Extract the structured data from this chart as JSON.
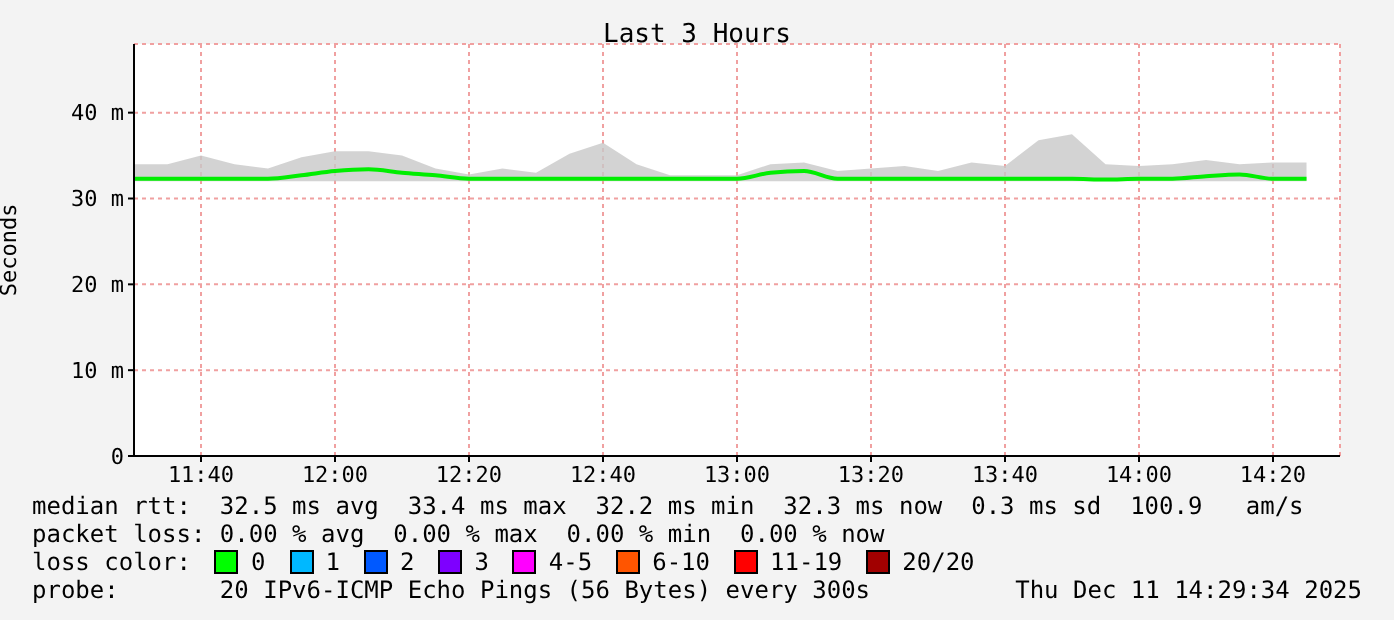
{
  "chart_data": {
    "type": "line",
    "title": "Last 3 Hours",
    "ylabel": "Seconds",
    "x": [
      11.5,
      11.5833,
      11.6667,
      11.75,
      11.8333,
      11.9167,
      12,
      12.0833,
      12.1667,
      12.25,
      12.3333,
      12.4167,
      12.5,
      12.5833,
      12.6667,
      12.75,
      12.8333,
      12.9167,
      13,
      13.0833,
      13.1667,
      13.25,
      13.3333,
      13.4167,
      13.5,
      13.5833,
      13.6667,
      13.75,
      13.8333,
      13.9167,
      14,
      14.0833,
      14.1667,
      14.25,
      14.3333,
      14.4167
    ],
    "series": [
      {
        "color": "#00ee00",
        "values": [
          32.3,
          32.3,
          32.3,
          32.3,
          32.3,
          32.7,
          33.2,
          33.4,
          33,
          32.7,
          32.3,
          32.3,
          32.3,
          32.3,
          32.3,
          32.3,
          32.3,
          32.3,
          32.3,
          33,
          33.2,
          32.3,
          32.3,
          32.3,
          32.3,
          32.3,
          32.3,
          32.3,
          32.3,
          32.2,
          32.3,
          32.3,
          32.6,
          32.8,
          32.3,
          32.3
        ],
        "lower": [
          32,
          32,
          32,
          32,
          32,
          32,
          32,
          32,
          32,
          32,
          32,
          32,
          32,
          32,
          32,
          32,
          32,
          32,
          32,
          32,
          32,
          32,
          32,
          32,
          32,
          32,
          32,
          32,
          32,
          32,
          32,
          32,
          32,
          32,
          32,
          32
        ],
        "upper": [
          34,
          34,
          35,
          34,
          33.5,
          34.8,
          35.5,
          35.5,
          35,
          33.5,
          32.8,
          33.5,
          33,
          35.2,
          36.5,
          34,
          32.7,
          32.7,
          32.7,
          34,
          34.2,
          33.2,
          33.5,
          33.8,
          33.2,
          34.2,
          33.8,
          36.8,
          37.5,
          34,
          33.8,
          34,
          34.5,
          34,
          34.2,
          34.2
        ]
      }
    ],
    "xlim": [
      11.5,
      14.5
    ],
    "xticks": [
      {
        "value": 11.6667,
        "label": "11:40"
      },
      {
        "value": 12,
        "label": "12:00"
      },
      {
        "value": 12.3333,
        "label": "12:20"
      },
      {
        "value": 12.6667,
        "label": "12:40"
      },
      {
        "value": 13,
        "label": "13:00"
      },
      {
        "value": 13.3333,
        "label": "13:20"
      },
      {
        "value": 13.6667,
        "label": "13:40"
      },
      {
        "value": 14,
        "label": "14:00"
      },
      {
        "value": 14.3333,
        "label": "14:20"
      }
    ],
    "ylim": [
      0,
      48
    ],
    "yticks": [
      0,
      {
        "value": 10,
        "label": "10 m"
      },
      {
        "value": 20,
        "label": "20 m"
      },
      {
        "value": 30,
        "label": "30 m"
      },
      {
        "value": 40,
        "label": "40 m"
      }
    ],
    "grid": true,
    "legend": false,
    "marker": "none",
    "annotations": [
      "median rtt:  32.5 ms avg  33.4 ms max  32.2 ms min  32.3 ms now  0.3 ms sd  100.9   am/s",
      "packet loss: 0.00 % avg  0.00 % max  0.00 % min  0.00 % now",
      "loss color:",
      "0",
      "1",
      "2",
      "3",
      "4-5",
      "6-10",
      "11-19",
      "20/20",
      "probe:       20 IPv6-ICMP Echo Pings (56 Bytes) every 300s",
      "Thu Dec 11 14:29:34 2025"
    ]
  }
}
